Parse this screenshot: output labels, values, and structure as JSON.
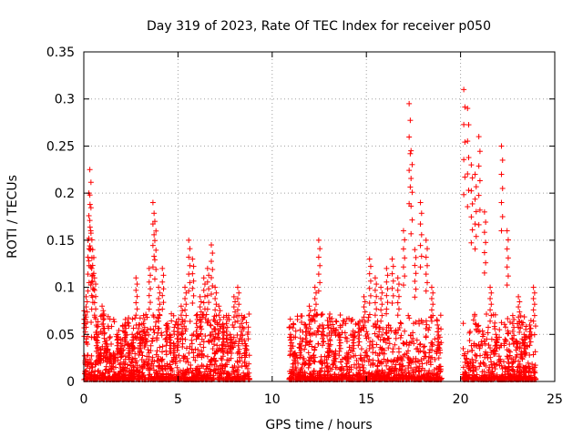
{
  "chart_data": {
    "type": "scatter",
    "title": "Day 319 of 2023, Rate Of TEC Index for receiver p050",
    "xlabel": "GPS time / hours",
    "ylabel": "ROTI / TECUs",
    "xlim": [
      0,
      25
    ],
    "ylim": [
      0,
      0.35
    ],
    "xticks": [
      0,
      5,
      10,
      15,
      20,
      25
    ],
    "yticks": [
      0,
      0.05,
      0.1,
      0.15,
      0.2,
      0.25,
      0.3,
      0.35
    ],
    "xtick_labels": [
      "0",
      "5",
      "10",
      "15",
      "20",
      "25"
    ],
    "ytick_labels": [
      "0",
      "0.05",
      "0.1",
      "0.15",
      "0.2",
      "0.25",
      "0.3",
      "0.35"
    ],
    "grid": true,
    "marker": "+",
    "color": "#ff0000",
    "data_gaps_hours": [
      [
        8.8,
        10.9
      ],
      [
        19.0,
        20.1
      ]
    ],
    "series": [
      {
        "x": [
          0.05,
          0.15,
          0.25,
          0.3,
          0.35,
          0.4,
          0.45,
          0.5,
          0.6,
          0.7,
          0.8,
          1.0,
          1.2,
          1.4,
          1.6,
          1.8,
          2.0,
          2.2,
          2.4,
          2.6,
          2.8,
          3.0,
          3.2,
          3.5,
          3.7,
          3.8,
          4.0,
          4.2,
          4.4,
          4.6,
          4.8,
          5.0,
          5.2,
          5.4,
          5.6,
          5.8,
          6.0,
          6.2,
          6.4,
          6.6,
          6.8,
          7.0,
          7.2,
          7.4,
          7.6,
          7.8,
          8.0,
          8.2,
          8.4,
          8.6,
          11.0,
          11.2,
          11.5,
          11.8,
          12.0,
          12.3,
          12.5,
          12.7,
          13.0,
          13.3,
          13.6,
          14.0,
          14.3,
          14.6,
          14.9,
          15.2,
          15.5,
          15.8,
          16.1,
          16.4,
          16.7,
          17.0,
          17.3,
          17.4,
          17.6,
          17.9,
          18.2,
          18.5,
          18.8,
          20.2,
          20.4,
          20.6,
          20.8,
          21.0,
          21.3,
          21.6,
          21.9,
          22.2,
          22.5,
          22.8,
          23.1,
          23.4,
          23.7,
          23.9
        ],
        "y": [
          0.075,
          0.09,
          0.15,
          0.2,
          0.225,
          0.16,
          0.12,
          0.14,
          0.11,
          0.05,
          0.03,
          0.08,
          0.04,
          0.03,
          0.03,
          0.05,
          0.04,
          0.06,
          0.04,
          0.05,
          0.11,
          0.05,
          0.07,
          0.12,
          0.19,
          0.17,
          0.1,
          0.12,
          0.06,
          0.05,
          0.04,
          0.06,
          0.08,
          0.1,
          0.15,
          0.13,
          0.07,
          0.09,
          0.11,
          0.12,
          0.145,
          0.1,
          0.08,
          0.06,
          0.07,
          0.05,
          0.09,
          0.1,
          0.07,
          0.04,
          0.05,
          0.03,
          0.04,
          0.06,
          0.08,
          0.1,
          0.15,
          0.06,
          0.04,
          0.03,
          0.05,
          0.03,
          0.05,
          0.06,
          0.09,
          0.13,
          0.11,
          0.1,
          0.12,
          0.13,
          0.11,
          0.16,
          0.295,
          0.245,
          0.14,
          0.19,
          0.15,
          0.1,
          0.06,
          0.31,
          0.29,
          0.23,
          0.22,
          0.26,
          0.18,
          0.1,
          0.05,
          0.25,
          0.16,
          0.07,
          0.09,
          0.05,
          0.06,
          0.1
        ]
      }
    ]
  }
}
